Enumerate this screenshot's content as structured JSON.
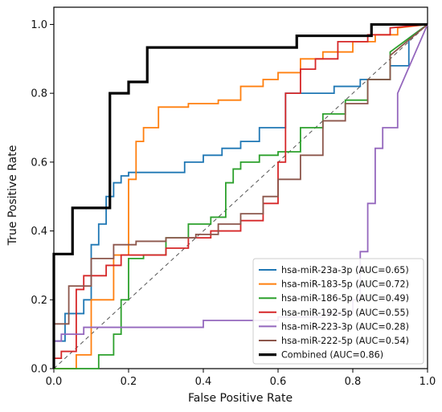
{
  "chart_data": {
    "type": "line",
    "title": "",
    "xlabel": "False Positive Rate",
    "ylabel": "True Positive Rate",
    "xlim": [
      0,
      1
    ],
    "ylim": [
      0,
      1.05
    ],
    "xticks": [
      0.0,
      0.2,
      0.4,
      0.6,
      0.8,
      1.0
    ],
    "yticks": [
      0.0,
      0.2,
      0.4,
      0.6,
      0.8,
      1.0
    ],
    "xtick_labels": [
      "0.0",
      "0.2",
      "0.4",
      "0.6",
      "0.8",
      "1.0"
    ],
    "ytick_labels": [
      "0.0",
      "0.2",
      "0.4",
      "0.6",
      "0.8",
      "1.0"
    ],
    "grid": false,
    "legend_position": "bottom-right",
    "diagonal_reference": true,
    "series": [
      {
        "name": "hsa-miR-23a-3p (AUC=0.65)",
        "color": "#1f77b4",
        "x": [
          0.0,
          0.0,
          0.03,
          0.03,
          0.08,
          0.08,
          0.1,
          0.1,
          0.12,
          0.12,
          0.14,
          0.14,
          0.16,
          0.16,
          0.18,
          0.18,
          0.2,
          0.2,
          0.24,
          0.24,
          0.35,
          0.35,
          0.4,
          0.4,
          0.45,
          0.45,
          0.5,
          0.5,
          0.55,
          0.55,
          0.62,
          0.62,
          0.68,
          0.68,
          0.75,
          0.75,
          0.82,
          0.82,
          0.86,
          0.86,
          0.9,
          0.9,
          0.95,
          0.95,
          1.0
        ],
        "y": [
          0.0,
          0.08,
          0.08,
          0.16,
          0.16,
          0.2,
          0.2,
          0.36,
          0.36,
          0.42,
          0.42,
          0.5,
          0.5,
          0.54,
          0.54,
          0.56,
          0.56,
          0.57,
          0.57,
          0.57,
          0.57,
          0.6,
          0.6,
          0.62,
          0.62,
          0.64,
          0.64,
          0.66,
          0.66,
          0.7,
          0.7,
          0.8,
          0.8,
          0.8,
          0.8,
          0.82,
          0.82,
          0.84,
          0.84,
          0.84,
          0.84,
          0.88,
          0.88,
          0.96,
          1.0
        ]
      },
      {
        "name": "hsa-miR-183-5p (AUC=0.72)",
        "color": "#ff7f0e",
        "x": [
          0.0,
          0.06,
          0.06,
          0.1,
          0.1,
          0.16,
          0.16,
          0.2,
          0.2,
          0.22,
          0.22,
          0.24,
          0.24,
          0.28,
          0.28,
          0.36,
          0.36,
          0.44,
          0.44,
          0.5,
          0.5,
          0.56,
          0.56,
          0.6,
          0.6,
          0.66,
          0.66,
          0.72,
          0.72,
          0.8,
          0.8,
          0.86,
          0.86,
          0.92,
          0.92,
          1.0
        ],
        "y": [
          0.0,
          0.0,
          0.04,
          0.04,
          0.2,
          0.2,
          0.33,
          0.33,
          0.55,
          0.55,
          0.66,
          0.66,
          0.7,
          0.7,
          0.76,
          0.76,
          0.77,
          0.77,
          0.78,
          0.78,
          0.82,
          0.82,
          0.84,
          0.84,
          0.86,
          0.86,
          0.9,
          0.9,
          0.92,
          0.92,
          0.95,
          0.95,
          0.97,
          0.97,
          0.99,
          1.0
        ]
      },
      {
        "name": "hsa-miR-186-5p (AUC=0.49)",
        "color": "#2ca02c",
        "x": [
          0.0,
          0.12,
          0.12,
          0.16,
          0.16,
          0.18,
          0.18,
          0.2,
          0.2,
          0.24,
          0.24,
          0.3,
          0.3,
          0.36,
          0.36,
          0.42,
          0.42,
          0.46,
          0.46,
          0.48,
          0.48,
          0.5,
          0.5,
          0.55,
          0.55,
          0.6,
          0.6,
          0.66,
          0.66,
          0.72,
          0.72,
          0.78,
          0.78,
          0.84,
          0.84,
          0.9,
          0.9,
          1.0
        ],
        "y": [
          0.0,
          0.0,
          0.04,
          0.04,
          0.1,
          0.1,
          0.2,
          0.2,
          0.32,
          0.32,
          0.33,
          0.33,
          0.38,
          0.38,
          0.42,
          0.42,
          0.44,
          0.44,
          0.54,
          0.54,
          0.58,
          0.58,
          0.6,
          0.6,
          0.62,
          0.62,
          0.63,
          0.63,
          0.7,
          0.7,
          0.74,
          0.74,
          0.78,
          0.78,
          0.84,
          0.84,
          0.92,
          1.0
        ]
      },
      {
        "name": "hsa-miR-192-5p (AUC=0.55)",
        "color": "#d62728",
        "x": [
          0.0,
          0.0,
          0.02,
          0.02,
          0.06,
          0.06,
          0.08,
          0.08,
          0.14,
          0.14,
          0.18,
          0.18,
          0.24,
          0.24,
          0.3,
          0.3,
          0.36,
          0.36,
          0.42,
          0.42,
          0.5,
          0.5,
          0.56,
          0.56,
          0.6,
          0.6,
          0.62,
          0.62,
          0.66,
          0.66,
          0.7,
          0.7,
          0.76,
          0.76,
          0.84,
          0.84,
          0.9,
          0.9,
          1.0
        ],
        "y": [
          0.0,
          0.03,
          0.03,
          0.05,
          0.05,
          0.23,
          0.23,
          0.27,
          0.27,
          0.3,
          0.3,
          0.33,
          0.33,
          0.33,
          0.33,
          0.35,
          0.35,
          0.38,
          0.38,
          0.4,
          0.4,
          0.43,
          0.43,
          0.48,
          0.48,
          0.6,
          0.6,
          0.8,
          0.8,
          0.87,
          0.87,
          0.9,
          0.9,
          0.95,
          0.95,
          0.97,
          0.97,
          0.99,
          1.0
        ]
      },
      {
        "name": "hsa-miR-223-3p (AUC=0.28)",
        "color": "#9467bd",
        "x": [
          0.0,
          0.0,
          0.02,
          0.02,
          0.08,
          0.08,
          0.4,
          0.4,
          0.6,
          0.6,
          0.72,
          0.72,
          0.8,
          0.8,
          0.82,
          0.82,
          0.84,
          0.84,
          0.86,
          0.86,
          0.88,
          0.88,
          0.92,
          0.92,
          1.0
        ],
        "y": [
          0.0,
          0.08,
          0.08,
          0.1,
          0.1,
          0.12,
          0.12,
          0.14,
          0.14,
          0.15,
          0.15,
          0.16,
          0.16,
          0.2,
          0.2,
          0.34,
          0.34,
          0.48,
          0.48,
          0.64,
          0.64,
          0.7,
          0.7,
          0.8,
          1.0
        ]
      },
      {
        "name": "hsa-miR-222-5p (AUC=0.54)",
        "color": "#8c564b",
        "x": [
          0.0,
          0.0,
          0.04,
          0.04,
          0.1,
          0.1,
          0.16,
          0.16,
          0.22,
          0.22,
          0.3,
          0.3,
          0.38,
          0.38,
          0.44,
          0.44,
          0.5,
          0.5,
          0.56,
          0.56,
          0.6,
          0.6,
          0.66,
          0.66,
          0.72,
          0.72,
          0.78,
          0.78,
          0.84,
          0.84,
          0.9,
          0.9,
          1.0
        ],
        "y": [
          0.0,
          0.13,
          0.13,
          0.24,
          0.24,
          0.32,
          0.32,
          0.36,
          0.36,
          0.37,
          0.37,
          0.38,
          0.38,
          0.39,
          0.39,
          0.42,
          0.42,
          0.45,
          0.45,
          0.5,
          0.5,
          0.55,
          0.55,
          0.62,
          0.62,
          0.72,
          0.72,
          0.77,
          0.77,
          0.84,
          0.84,
          0.91,
          1.0
        ]
      },
      {
        "name": "Combined (AUC=0.86)",
        "color": "#000000",
        "bold": true,
        "x": [
          0.0,
          0.0,
          0.05,
          0.05,
          0.15,
          0.15,
          0.2,
          0.2,
          0.25,
          0.25,
          0.65,
          0.65,
          0.85,
          0.85,
          1.0
        ],
        "y": [
          0.0,
          0.333,
          0.333,
          0.467,
          0.467,
          0.8,
          0.8,
          0.833,
          0.833,
          0.933,
          0.933,
          0.967,
          0.967,
          1.0,
          1.0
        ]
      }
    ]
  }
}
